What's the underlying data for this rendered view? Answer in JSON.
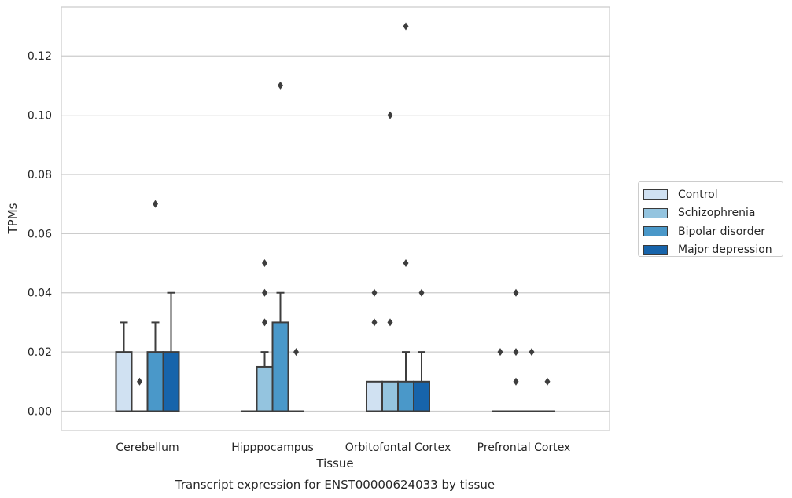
{
  "chart_data": {
    "type": "box",
    "title": "Transcript expression for ENST00000624033 by tissue",
    "xlabel": "Tissue",
    "ylabel": "TPMs",
    "ylim": [
      -0.0065,
      0.1365
    ],
    "yticks": [
      "0.00",
      "0.02",
      "0.04",
      "0.06",
      "0.08",
      "0.10",
      "0.12"
    ],
    "ytick_values": [
      0,
      0.02,
      0.04,
      0.06,
      0.08,
      0.1,
      0.12
    ],
    "grid": true,
    "legend_position": "right",
    "categories": [
      "Cerebellum",
      "Hipppocampus",
      "Orbitofontal Cortex",
      "Prefrontal Cortex"
    ],
    "series": [
      {
        "name": "Control",
        "color": "#d0e1f2",
        "boxes": [
          {
            "q1": 0,
            "median": 0,
            "q3": 0.02,
            "whisker_low": 0,
            "whisker_high": 0.03,
            "outliers": []
          },
          {
            "q1": 0,
            "median": 0,
            "q3": 0,
            "whisker_low": 0,
            "whisker_high": 0,
            "outliers": []
          },
          {
            "q1": 0,
            "median": 0,
            "q3": 0.01,
            "whisker_low": 0,
            "whisker_high": 0.01,
            "outliers": [
              0.03,
              0.04
            ]
          },
          {
            "q1": 0,
            "median": 0,
            "q3": 0,
            "whisker_low": 0,
            "whisker_high": 0,
            "outliers": [
              0.02
            ]
          }
        ]
      },
      {
        "name": "Schizophrenia",
        "color": "#94c4df",
        "boxes": [
          {
            "q1": 0,
            "median": 0,
            "q3": 0,
            "whisker_low": 0,
            "whisker_high": 0,
            "outliers": [
              0.01
            ]
          },
          {
            "q1": 0,
            "median": 0,
            "q3": 0.015,
            "whisker_low": 0,
            "whisker_high": 0.02,
            "outliers": [
              0.03,
              0.04,
              0.05
            ]
          },
          {
            "q1": 0,
            "median": 0,
            "q3": 0.01,
            "whisker_low": 0,
            "whisker_high": 0.01,
            "outliers": [
              0.03,
              0.1
            ]
          },
          {
            "q1": 0,
            "median": 0,
            "q3": 0,
            "whisker_low": 0,
            "whisker_high": 0,
            "outliers": [
              0.01,
              0.02,
              0.04
            ]
          }
        ]
      },
      {
        "name": "Bipolar disorder",
        "color": "#4a98c9",
        "boxes": [
          {
            "q1": 0,
            "median": 0,
            "q3": 0.02,
            "whisker_low": 0,
            "whisker_high": 0.03,
            "outliers": [
              0.07
            ]
          },
          {
            "q1": 0,
            "median": 0,
            "q3": 0.03,
            "whisker_low": 0,
            "whisker_high": 0.04,
            "outliers": [
              0.11
            ]
          },
          {
            "q1": 0,
            "median": 0,
            "q3": 0.01,
            "whisker_low": 0,
            "whisker_high": 0.02,
            "outliers": [
              0.05,
              0.13
            ]
          },
          {
            "q1": 0,
            "median": 0,
            "q3": 0,
            "whisker_low": 0,
            "whisker_high": 0,
            "outliers": [
              0.02
            ]
          }
        ]
      },
      {
        "name": "Major depression",
        "color": "#1764ab",
        "boxes": [
          {
            "q1": 0,
            "median": 0,
            "q3": 0.02,
            "whisker_low": 0,
            "whisker_high": 0.04,
            "outliers": []
          },
          {
            "q1": 0,
            "median": 0,
            "q3": 0,
            "whisker_low": 0,
            "whisker_high": 0,
            "outliers": [
              0.02
            ]
          },
          {
            "q1": 0,
            "median": 0,
            "q3": 0.01,
            "whisker_low": 0,
            "whisker_high": 0.02,
            "outliers": [
              0.04
            ]
          },
          {
            "q1": 0,
            "median": 0,
            "q3": 0,
            "whisker_low": 0,
            "whisker_high": 0,
            "outliers": [
              0.01
            ]
          }
        ]
      }
    ]
  }
}
